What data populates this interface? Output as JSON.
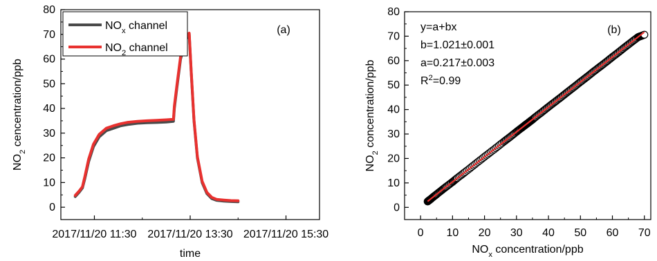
{
  "chart_data": [
    {
      "type": "line",
      "panel_label": "(a)",
      "xlabel": "time",
      "ylabel": {
        "prefix": "NO",
        "sub": "2",
        "suffix": " cencentration/ppb"
      },
      "ylim": [
        -5,
        80
      ],
      "yticks": [
        0,
        10,
        20,
        30,
        40,
        50,
        60,
        70,
        80
      ],
      "xlim_hours": [
        10.8,
        16.2
      ],
      "xticks": [
        {
          "t": 11.5,
          "label": "2017/11/20 11:30"
        },
        {
          "t": 13.5,
          "label": "2017/11/20 13:30"
        },
        {
          "t": 15.5,
          "label": "2017/11/20 15:30"
        }
      ],
      "legend": "top-left",
      "series": [
        {
          "name": {
            "prefix": "NO",
            "sub": "x",
            "suffix": " channel"
          },
          "color": "#4a4a4a",
          "x": [
            11.1,
            11.18,
            11.25,
            11.3,
            11.38,
            11.48,
            11.6,
            11.75,
            11.9,
            12.05,
            12.2,
            12.4,
            12.6,
            12.8,
            13.0,
            13.15,
            13.17,
            13.22,
            13.3,
            13.4,
            13.45,
            13.48,
            13.52,
            13.58,
            13.65,
            13.75,
            13.85,
            13.95,
            14.05,
            14.2,
            14.35,
            14.5
          ],
          "y": [
            4.3,
            6.0,
            7.8,
            11.5,
            18.5,
            24.5,
            28.5,
            31.0,
            32.0,
            33.0,
            33.5,
            34.0,
            34.2,
            34.3,
            34.5,
            34.8,
            40.0,
            48.0,
            60.0,
            67.0,
            69.5,
            70.0,
            55.0,
            35.0,
            20.0,
            10.0,
            5.5,
            3.5,
            2.8,
            2.5,
            2.3,
            2.2
          ]
        },
        {
          "name": {
            "prefix": "NO",
            "sub": "2",
            "suffix": " channel"
          },
          "color": "#e8312f",
          "x": [
            11.1,
            11.18,
            11.25,
            11.3,
            11.38,
            11.48,
            11.6,
            11.75,
            11.9,
            12.05,
            12.2,
            12.4,
            12.6,
            12.8,
            13.0,
            13.15,
            13.17,
            13.22,
            13.3,
            13.4,
            13.45,
            13.48,
            13.52,
            13.58,
            13.65,
            13.75,
            13.85,
            13.95,
            14.05,
            14.2,
            14.35,
            14.5
          ],
          "y": [
            4.8,
            6.5,
            8.3,
            12.3,
            19.5,
            25.5,
            29.5,
            32.0,
            33.0,
            33.8,
            34.4,
            34.8,
            35.0,
            35.2,
            35.4,
            35.6,
            41.0,
            49.0,
            61.0,
            68.0,
            70.0,
            70.5,
            55.5,
            35.5,
            20.5,
            10.5,
            6.0,
            4.0,
            3.2,
            2.9,
            2.7,
            2.6
          ]
        }
      ]
    },
    {
      "type": "scatter",
      "panel_label": "(b)",
      "xlabel": {
        "prefix": "NO",
        "sub": "x",
        "suffix": " concentration/ppb"
      },
      "ylabel": {
        "prefix": "NO",
        "sub": "2",
        "suffix": " concentration/ppb"
      },
      "xlim": [
        -5,
        72
      ],
      "ylim": [
        -5,
        80
      ],
      "xticks": [
        0,
        10,
        20,
        30,
        40,
        50,
        60,
        70
      ],
      "yticks": [
        0,
        10,
        20,
        30,
        40,
        50,
        60,
        70,
        80
      ],
      "annotation": [
        {
          "text": "y=a+bx"
        },
        {
          "text": "b=1.021±0.001"
        },
        {
          "text": "a=0.217±0.003"
        },
        {
          "prefix": "R",
          "sup": "2",
          "suffix": "=0.99"
        }
      ],
      "points": {
        "x": [
          2.2,
          2.6,
          3.2,
          4.0,
          5.0,
          6.5,
          8.0,
          10.0,
          11.5,
          14.0,
          17.0,
          20.0,
          23.0,
          26.0,
          28.0,
          30.0,
          31.5,
          32.5,
          33.0,
          33.5,
          34.0,
          34.5,
          35.0,
          36.0,
          38.0,
          40.0,
          42.0,
          44.0,
          46.0,
          48.0,
          50.0,
          52.0,
          54.0,
          56.0,
          58.0,
          60.0,
          62.0,
          64.0,
          66.0,
          68.0,
          69.0,
          70.0
        ],
        "y": [
          2.4,
          2.8,
          3.4,
          4.3,
          5.3,
          6.9,
          8.4,
          10.4,
          12.0,
          14.5,
          17.6,
          20.7,
          23.7,
          26.8,
          28.8,
          30.9,
          32.4,
          33.4,
          33.9,
          34.4,
          34.9,
          35.4,
          35.9,
          37.0,
          39.0,
          41.1,
          43.1,
          45.1,
          47.2,
          49.2,
          51.3,
          53.3,
          55.4,
          57.4,
          59.4,
          61.5,
          63.5,
          65.6,
          67.6,
          69.6,
          70.1,
          70.6
        ],
        "marker": "open-circle",
        "marker_color": "#000000"
      },
      "fit": {
        "a": 0.217,
        "b": 1.021,
        "x_range": [
          2.2,
          70.0
        ],
        "color": "#e8312f"
      }
    }
  ]
}
